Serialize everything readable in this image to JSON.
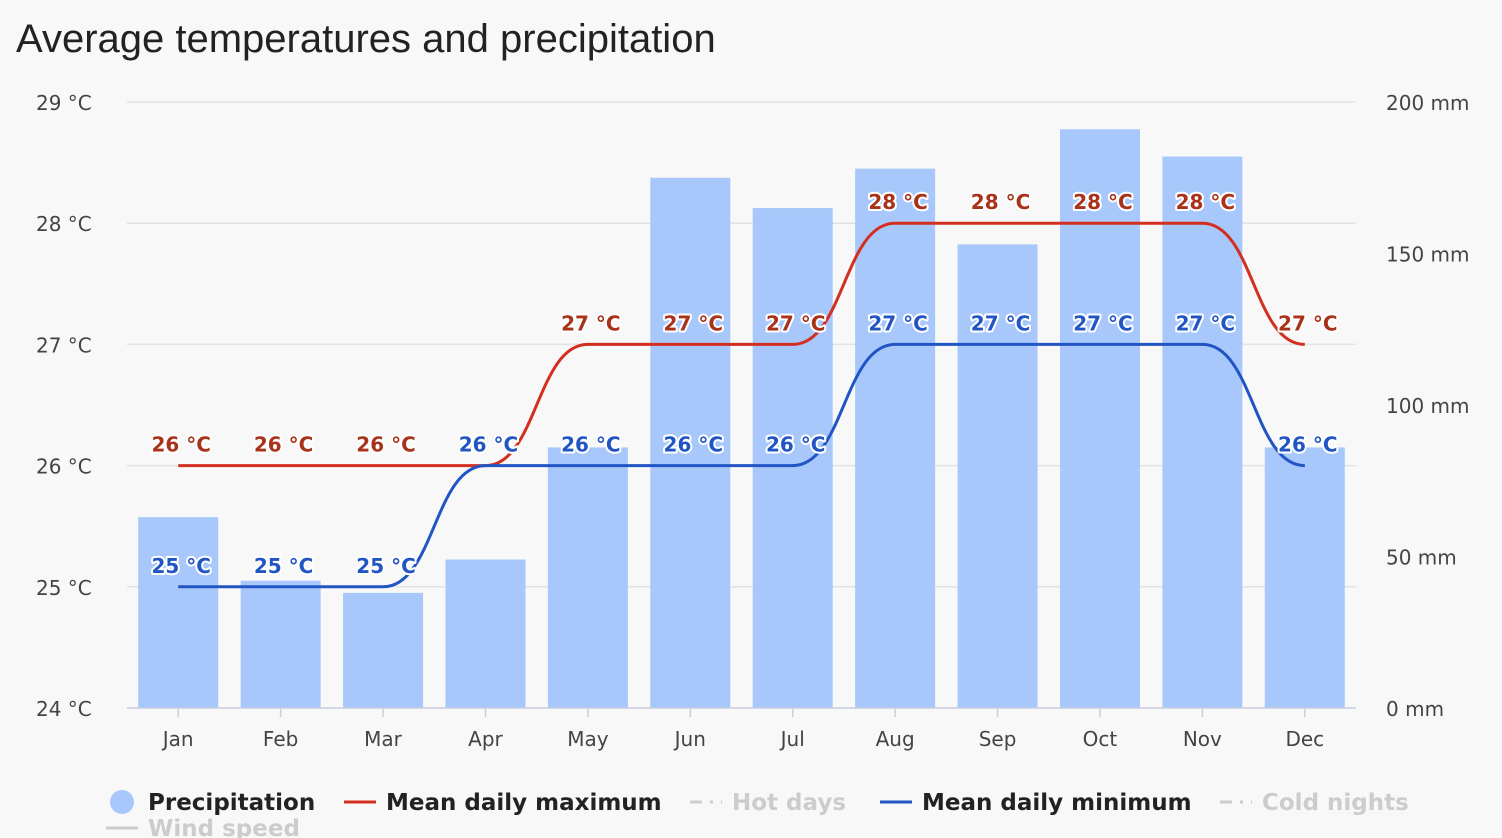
{
  "chart_data": {
    "type": "bar+line",
    "title": "Average temperatures and precipitation",
    "categories": [
      "Jan",
      "Feb",
      "Mar",
      "Apr",
      "May",
      "Jun",
      "Jul",
      "Aug",
      "Sep",
      "Oct",
      "Nov",
      "Dec"
    ],
    "y_left": {
      "ylim": [
        24,
        29
      ],
      "ticks": [
        24,
        25,
        26,
        27,
        28,
        29
      ],
      "tick_labels": [
        "24 °C",
        "25 °C",
        "26 °C",
        "27 °C",
        "28 °C",
        "29 °C"
      ]
    },
    "y_right": {
      "ylim": [
        0,
        200
      ],
      "ticks": [
        0,
        50,
        100,
        150,
        200
      ],
      "tick_labels": [
        "0 mm",
        "50 mm",
        "100 mm",
        "150 mm",
        "200 mm"
      ]
    },
    "series": [
      {
        "name": "Precipitation",
        "type": "bar",
        "axis": "right",
        "color": "#a8c8fc",
        "values": [
          63,
          42,
          38,
          49,
          86,
          175,
          165,
          178,
          153,
          191,
          182,
          86
        ]
      },
      {
        "name": "Mean daily maximum",
        "type": "line",
        "axis": "left",
        "color": "#d32f1f",
        "label_color": "#a8321a",
        "values": [
          26,
          26,
          26,
          26,
          27,
          27,
          27,
          28,
          28,
          28,
          28,
          27
        ],
        "labels": [
          "26 °C",
          "26 °C",
          "26 °C",
          "26 °C",
          "27 °C",
          "27 °C",
          "27 °C",
          "28 °C",
          "28 °C",
          "28 °C",
          "28 °C",
          "27 °C"
        ]
      },
      {
        "name": "Mean daily minimum",
        "type": "line",
        "axis": "left",
        "color": "#2255c4",
        "label_color": "#2255c4",
        "values": [
          25,
          25,
          25,
          26,
          26,
          26,
          26,
          27,
          27,
          27,
          27,
          26
        ],
        "labels": [
          "25 °C",
          "25 °C",
          "25 °C",
          "26 °C",
          "26 °C",
          "26 °C",
          "26 °C",
          "27 °C",
          "27 °C",
          "27 °C",
          "27 °C",
          "26 °C"
        ]
      }
    ],
    "legend": {
      "placement": "bottom",
      "items": [
        {
          "name": "Precipitation",
          "symbol": "circle",
          "color": "#a8c8fc",
          "enabled": true
        },
        {
          "name": "Mean daily maximum",
          "symbol": "line",
          "color": "#d32f1f",
          "enabled": true
        },
        {
          "name": "Hot days",
          "symbol": "dash",
          "color": "#cccccc",
          "enabled": false
        },
        {
          "name": "Mean daily minimum",
          "symbol": "line",
          "color": "#2255c4",
          "enabled": true
        },
        {
          "name": "Cold nights",
          "symbol": "dash",
          "color": "#cccccc",
          "enabled": false
        },
        {
          "name": "Wind speed",
          "symbol": "line",
          "color": "#cccccc",
          "enabled": false
        }
      ]
    }
  }
}
